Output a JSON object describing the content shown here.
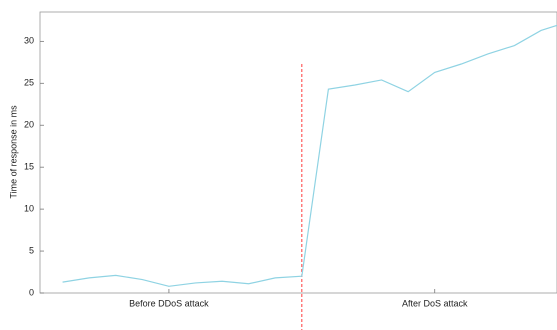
{
  "chart_data": {
    "type": "line",
    "y_label": "Time of response in ms",
    "x": [
      1,
      2,
      3,
      4,
      5,
      6,
      7,
      8,
      9,
      10,
      11,
      12,
      13,
      14,
      15,
      16,
      17,
      18,
      19,
      20
    ],
    "series": [
      {
        "color": "#8fd3e3",
        "values": [
          1.3,
          1.8,
          2.1,
          1.6,
          0.8,
          1.2,
          1.4,
          1.1,
          1.8,
          2.0,
          24.3,
          24.8,
          25.4,
          24.0,
          26.3,
          27.3,
          28.5,
          29.5,
          31.3,
          32.3
        ]
      }
    ],
    "xlim": [
      0.15,
      19.6
    ],
    "xticks": [
      {
        "value": 5,
        "label": "Before DDoS attack"
      },
      {
        "value": 15,
        "label": "After DoS attack"
      }
    ],
    "ylim": [
      0,
      33.5
    ],
    "yticks": [
      0,
      5,
      10,
      15,
      20,
      25,
      30
    ],
    "divider_x": 10,
    "divider_color": "#ff3b3b"
  }
}
